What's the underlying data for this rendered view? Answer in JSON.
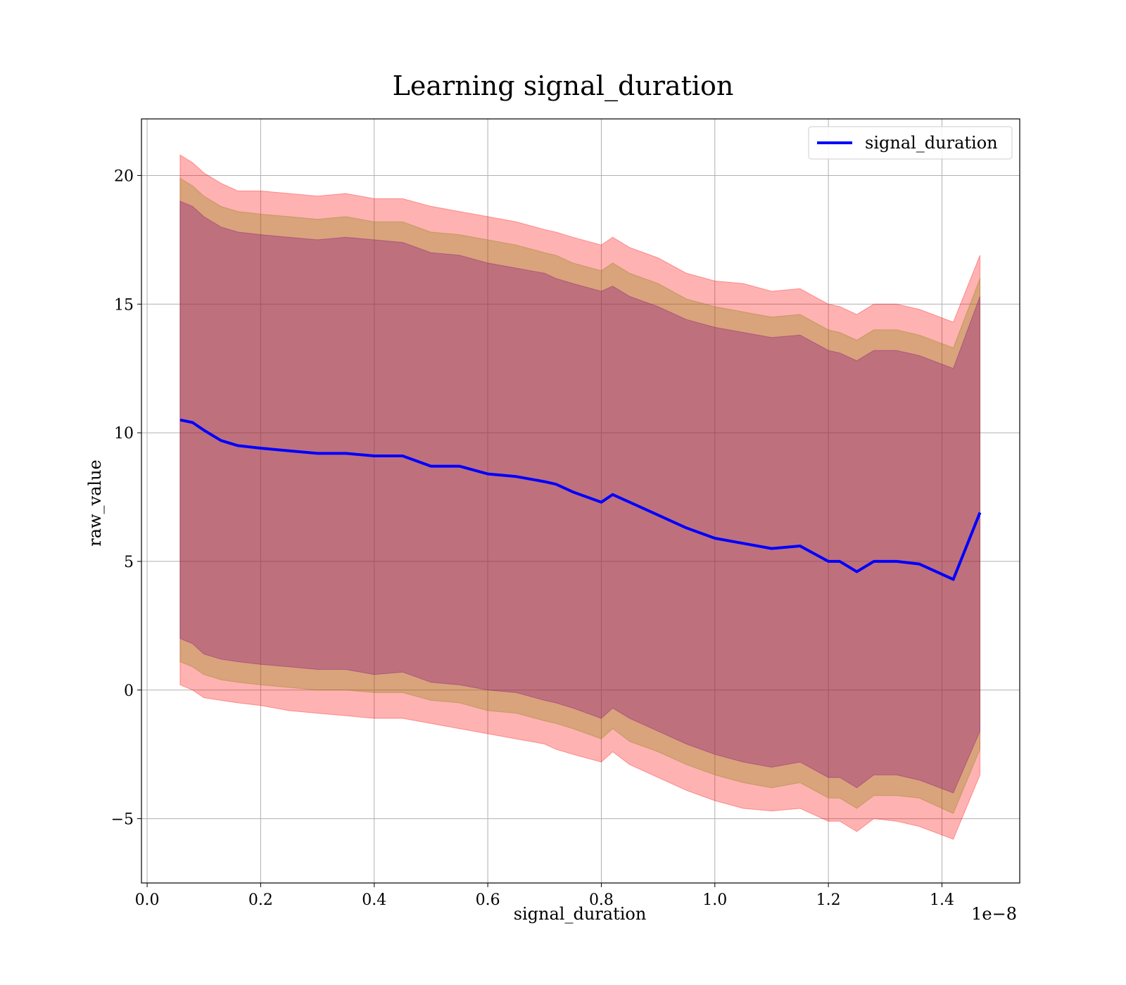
{
  "chart_data": {
    "type": "line",
    "title": "Learning signal_duration",
    "xlabel": "signal_duration",
    "ylabel": "raw_value",
    "x_offset_text": "1e−8",
    "xlim": [
      -0.01,
      1.537
    ],
    "ylim": [
      -7.5,
      22.2
    ],
    "x_ticks": [
      0.0,
      0.2,
      0.4,
      0.6,
      0.8,
      1.0,
      1.2,
      1.4
    ],
    "x_tick_labels": [
      "0.0",
      "0.2",
      "0.4",
      "0.6",
      "0.8",
      "1.0",
      "1.2",
      "1.4"
    ],
    "y_ticks": [
      -5,
      0,
      5,
      10,
      15,
      20
    ],
    "y_tick_labels": [
      "−5",
      "0",
      "5",
      "10",
      "15",
      "20"
    ],
    "grid": true,
    "legend": {
      "position": "top-right",
      "entries": [
        "signal_duration"
      ]
    },
    "series": [
      {
        "name": "signal_duration",
        "color": "#0000ff",
        "x": [
          0.058,
          0.08,
          0.1,
          0.13,
          0.16,
          0.2,
          0.25,
          0.3,
          0.35,
          0.4,
          0.45,
          0.5,
          0.55,
          0.6,
          0.65,
          0.7,
          0.72,
          0.75,
          0.8,
          0.82,
          0.85,
          0.9,
          0.95,
          1.0,
          1.05,
          1.1,
          1.15,
          1.2,
          1.22,
          1.25,
          1.28,
          1.32,
          1.36,
          1.42,
          1.467
        ],
        "y": [
          10.5,
          10.4,
          10.1,
          9.7,
          9.5,
          9.4,
          9.3,
          9.2,
          9.2,
          9.1,
          9.1,
          8.7,
          8.7,
          8.4,
          8.3,
          8.1,
          8.0,
          7.7,
          7.3,
          7.6,
          7.3,
          6.8,
          6.3,
          5.9,
          5.7,
          5.5,
          5.6,
          5.0,
          5.0,
          4.6,
          5.0,
          5.0,
          4.9,
          4.3,
          6.9
        ]
      }
    ],
    "bands": [
      {
        "color": "#ff0000",
        "opacity": 0.3,
        "upper": [
          20.8,
          20.5,
          20.1,
          19.7,
          19.4,
          19.4,
          19.3,
          19.2,
          19.3,
          19.1,
          19.1,
          18.8,
          18.6,
          18.4,
          18.2,
          17.9,
          17.8,
          17.6,
          17.3,
          17.6,
          17.2,
          16.8,
          16.2,
          15.9,
          15.8,
          15.5,
          15.6,
          15.0,
          14.9,
          14.6,
          15.0,
          15.0,
          14.8,
          14.3,
          16.9
        ],
        "lower": [
          0.2,
          0.0,
          -0.3,
          -0.4,
          -0.5,
          -0.6,
          -0.8,
          -0.9,
          -1.0,
          -1.1,
          -1.1,
          -1.3,
          -1.5,
          -1.7,
          -1.9,
          -2.1,
          -2.3,
          -2.5,
          -2.8,
          -2.4,
          -2.9,
          -3.4,
          -3.9,
          -4.3,
          -4.6,
          -4.7,
          -4.6,
          -5.1,
          -5.1,
          -5.5,
          -5.0,
          -5.1,
          -5.3,
          -5.8,
          -3.3
        ]
      },
      {
        "color": "#808000",
        "opacity": 0.3,
        "upper": [
          19.9,
          19.6,
          19.2,
          18.8,
          18.6,
          18.5,
          18.4,
          18.3,
          18.4,
          18.2,
          18.2,
          17.8,
          17.7,
          17.5,
          17.3,
          17.0,
          16.9,
          16.6,
          16.3,
          16.6,
          16.2,
          15.8,
          15.2,
          14.9,
          14.7,
          14.5,
          14.6,
          14.0,
          13.9,
          13.6,
          14.0,
          14.0,
          13.8,
          13.3,
          16.0
        ],
        "lower": [
          1.1,
          0.9,
          0.6,
          0.4,
          0.3,
          0.2,
          0.1,
          0.0,
          0.0,
          -0.1,
          -0.1,
          -0.4,
          -0.5,
          -0.8,
          -0.9,
          -1.2,
          -1.3,
          -1.5,
          -1.9,
          -1.5,
          -2.0,
          -2.4,
          -2.9,
          -3.3,
          -3.6,
          -3.8,
          -3.6,
          -4.2,
          -4.2,
          -4.6,
          -4.1,
          -4.1,
          -4.2,
          -4.8,
          -2.3
        ]
      },
      {
        "color": "#800080",
        "opacity": 0.3,
        "upper": [
          19.0,
          18.8,
          18.4,
          18.0,
          17.8,
          17.7,
          17.6,
          17.5,
          17.6,
          17.5,
          17.4,
          17.0,
          16.9,
          16.6,
          16.4,
          16.2,
          16.0,
          15.8,
          15.5,
          15.7,
          15.3,
          14.9,
          14.4,
          14.1,
          13.9,
          13.7,
          13.8,
          13.2,
          13.1,
          12.8,
          13.2,
          13.2,
          13.0,
          12.5,
          15.3
        ],
        "lower": [
          2.0,
          1.8,
          1.4,
          1.2,
          1.1,
          1.0,
          0.9,
          0.8,
          0.8,
          0.6,
          0.7,
          0.3,
          0.2,
          0.0,
          -0.1,
          -0.4,
          -0.5,
          -0.7,
          -1.1,
          -0.7,
          -1.1,
          -1.6,
          -2.1,
          -2.5,
          -2.8,
          -3.0,
          -2.8,
          -3.4,
          -3.4,
          -3.8,
          -3.3,
          -3.3,
          -3.5,
          -4.0,
          -1.6
        ]
      }
    ]
  }
}
